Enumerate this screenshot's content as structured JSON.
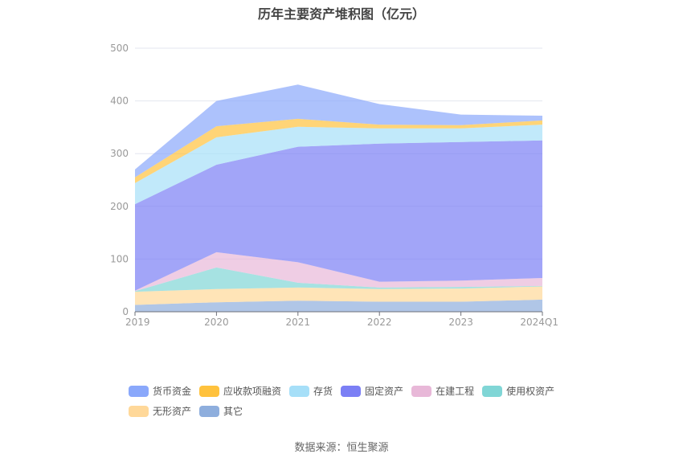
{
  "title": "历年主要资产堆积图（亿元）",
  "source": "数据来源：恒生聚源",
  "chart_data": {
    "type": "area",
    "stacked": true,
    "title": "历年主要资产堆积图（亿元）",
    "xlabel": "",
    "ylabel": "",
    "categories": [
      "2019",
      "2020",
      "2021",
      "2022",
      "2023",
      "2024Q1"
    ],
    "ylim": [
      0,
      500
    ],
    "yticks": [
      0,
      100,
      200,
      300,
      400,
      500
    ],
    "grid": true,
    "legend_position": "bottom",
    "series": [
      {
        "name": "其它",
        "color": "#8eaedd",
        "values": [
          13,
          18,
          21,
          19,
          19,
          23
        ]
      },
      {
        "name": "无形资产",
        "color": "#ffd899",
        "values": [
          25,
          25,
          25,
          24,
          25,
          25
        ]
      },
      {
        "name": "使用权资产",
        "color": "#80d6d6",
        "values": [
          1,
          41,
          9,
          3,
          3,
          1
        ]
      },
      {
        "name": "在建工程",
        "color": "#e8b8d8",
        "values": [
          1,
          29,
          39,
          11,
          12,
          15
        ]
      },
      {
        "name": "固定资产",
        "color": "#7b7ff5",
        "values": [
          164,
          166,
          219,
          262,
          263,
          261
        ]
      },
      {
        "name": "存货",
        "color": "#a6dff8",
        "values": [
          40,
          52,
          38,
          29,
          26,
          30
        ]
      },
      {
        "name": "应收款项融资",
        "color": "#ffc23d",
        "values": [
          11,
          21,
          15,
          7,
          6,
          8
        ]
      },
      {
        "name": "货币资金",
        "color": "#8aa8fb",
        "values": [
          15,
          48,
          65,
          39,
          20,
          9
        ]
      }
    ]
  },
  "legend": [
    [
      {
        "name": "货币资金",
        "color": "#8aa8fb"
      },
      {
        "name": "应收款项融资",
        "color": "#ffc23d"
      },
      {
        "name": "存货",
        "color": "#a6dff8"
      },
      {
        "name": "固定资产",
        "color": "#7b7ff5"
      },
      {
        "name": "在建工程",
        "color": "#e8b8d8"
      },
      {
        "name": "使用权资产",
        "color": "#80d6d6"
      }
    ],
    [
      {
        "name": "无形资产",
        "color": "#ffd899"
      },
      {
        "name": "其它",
        "color": "#8eaedd"
      }
    ]
  ]
}
